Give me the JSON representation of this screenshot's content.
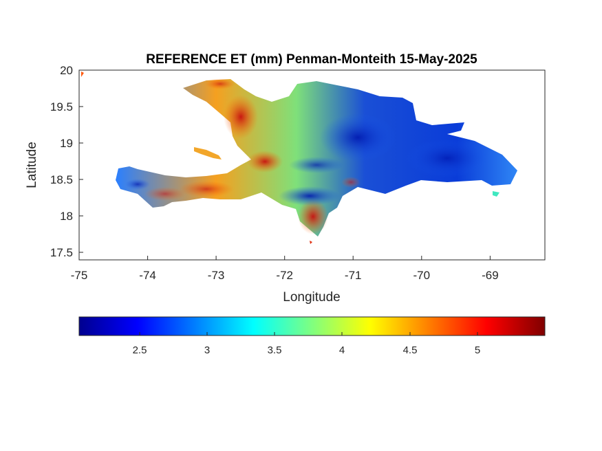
{
  "title": "REFERENCE ET (mm) Penman-Monteith 15-May-2025",
  "map": {
    "xlabel": "Longitude",
    "ylabel": "Latitude",
    "xlim": [
      -75,
      -68.2
    ],
    "ylim": [
      17.4,
      20
    ],
    "xticks": [
      "-75",
      "-74",
      "-73",
      "-72",
      "-71",
      "-70",
      "-69"
    ],
    "yticks": [
      "20",
      "19.5",
      "19",
      "18.5",
      "18",
      "17.5"
    ],
    "region": "Hispaniola (Haiti / Dominican Republic)"
  },
  "colorbar": {
    "colormap": "jet",
    "range": [
      2.05,
      5.5
    ],
    "ticks": [
      "2.5",
      "3",
      "3.5",
      "4",
      "4.5",
      "5"
    ]
  }
}
